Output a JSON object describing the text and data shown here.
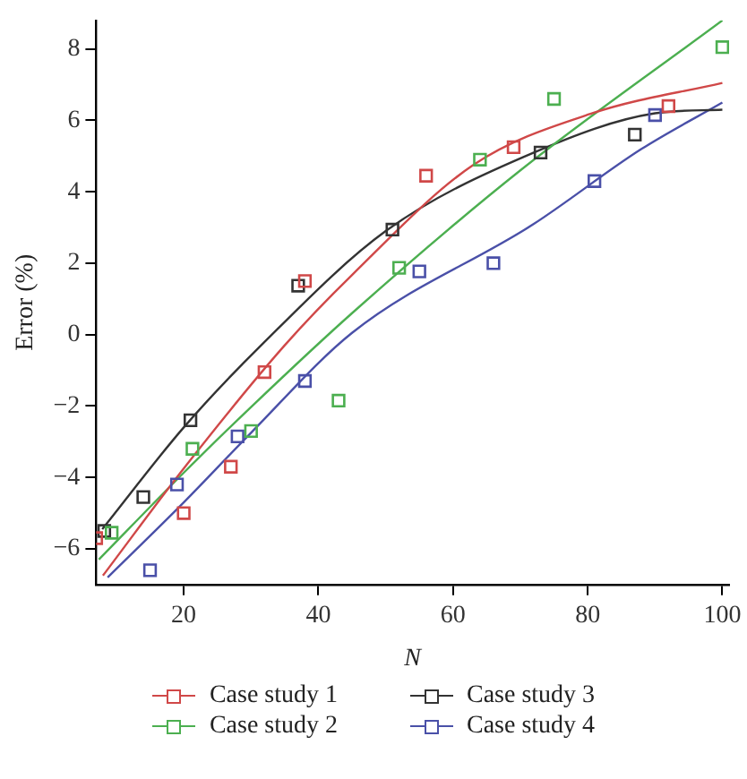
{
  "chart_data": {
    "type": "scatter",
    "xlabel": "N",
    "ylabel": "Error (%)",
    "xlim": [
      7,
      101
    ],
    "ylim": [
      -7,
      8.8
    ],
    "xticks": [
      20,
      40,
      60,
      80,
      100
    ],
    "yticks": [
      -6,
      -4,
      -2,
      0,
      2,
      4,
      6,
      8
    ],
    "grid": false,
    "legend": "bottom",
    "marker": "square",
    "series": [
      {
        "type": "line",
        "marker": "none",
        "color": "#d04848",
        "x": [
          8,
          20,
          35,
          45,
          63,
          80.7,
          100
        ],
        "values": [
          -6.75,
          -3.75,
          -0.3,
          1.67,
          4.75,
          6.2,
          7.05
        ]
      },
      {
        "type": "line",
        "marker": "none",
        "color": "#4caf50",
        "x": [
          7.4,
          20,
          30,
          45,
          70,
          100
        ],
        "values": [
          -6.3,
          -3.87,
          -2.03,
          0.6,
          4.6,
          8.8
        ]
      },
      {
        "type": "line",
        "marker": "none",
        "color": "#333333",
        "x": [
          7.9,
          20,
          31.5,
          50,
          72,
          90,
          100
        ],
        "values": [
          -5.45,
          -2.6,
          -0.3,
          2.9,
          5.1,
          6.2,
          6.3
        ]
      },
      {
        "type": "line",
        "marker": "none",
        "color": "#4a50a8",
        "x": [
          8.7,
          20,
          30,
          45,
          72,
          88,
          100
        ],
        "values": [
          -6.8,
          -4.7,
          -2.75,
          0.05,
          3.1,
          5.2,
          6.5
        ]
      },
      {
        "name": "Case study 1",
        "color": "#d04848",
        "x": [
          7,
          20,
          27,
          32,
          38,
          56,
          69,
          92
        ],
        "values": [
          -5.7,
          -5.0,
          -3.7,
          -1.05,
          1.5,
          4.45,
          5.25,
          6.4
        ]
      },
      {
        "name": "Case study 2",
        "color": "#4caf50",
        "x": [
          9.3,
          21.3,
          30,
          43,
          52,
          64,
          75,
          100
        ],
        "values": [
          -5.55,
          -3.2,
          -2.7,
          -1.85,
          1.87,
          4.9,
          6.6,
          8.05
        ]
      },
      {
        "name": "Case study 3",
        "color": "#333333",
        "x": [
          8.2,
          14,
          21,
          37,
          51,
          73,
          87
        ],
        "values": [
          -5.5,
          -4.55,
          -2.4,
          1.37,
          2.94,
          5.1,
          5.6
        ]
      },
      {
        "name": "Case study 4",
        "color": "#4a50a8",
        "x": [
          15,
          19,
          28,
          38,
          55,
          66,
          81,
          90
        ],
        "values": [
          -6.6,
          -4.2,
          -2.85,
          -1.3,
          1.77,
          2.0,
          4.3,
          6.15
        ]
      }
    ]
  }
}
